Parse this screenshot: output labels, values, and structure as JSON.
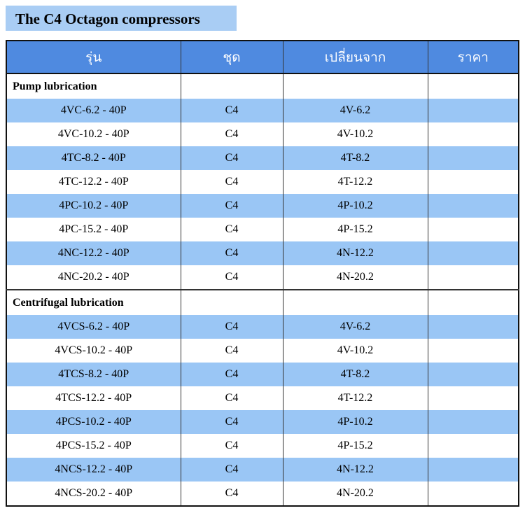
{
  "header": {
    "title": "The C4  Octagon compressors"
  },
  "table": {
    "columns": [
      "รุ่น",
      "ชุด",
      "เปลี่ยนจาก",
      "ราคา"
    ],
    "sections": [
      {
        "title": "Pump lubrication",
        "rows": [
          [
            "4VC-6.2 - 40P",
            "C4",
            "4V-6.2"
          ],
          [
            "4VC-10.2 - 40P",
            "C4",
            "4V-10.2"
          ],
          [
            "4TC-8.2 - 40P",
            "C4",
            "4T-8.2"
          ],
          [
            "4TC-12.2 - 40P",
            "C4",
            "4T-12.2"
          ],
          [
            "4PC-10.2 - 40P",
            "C4",
            "4P-10.2"
          ],
          [
            "4PC-15.2 - 40P",
            "C4",
            "4P-15.2"
          ],
          [
            "4NC-12.2 - 40P",
            "C4",
            "4N-12.2"
          ],
          [
            "4NC-20.2 - 40P",
            "C4",
            "4N-20.2"
          ]
        ]
      },
      {
        "title": "Centrifugal lubrication",
        "rows": [
          [
            "4VCS-6.2 - 40P",
            "C4",
            "4V-6.2"
          ],
          [
            "4VCS-10.2 - 40P",
            "C4",
            "4V-10.2"
          ],
          [
            "4TCS-8.2 - 40P",
            "C4",
            "4T-8.2"
          ],
          [
            "4TCS-12.2 - 40P",
            "C4",
            "4T-12.2"
          ],
          [
            "4PCS-10.2 - 40P",
            "C4",
            "4P-10.2"
          ],
          [
            "4PCS-15.2 - 40P",
            "C4",
            "4P-15.2"
          ],
          [
            "4NCS-12.2 - 40P",
            "C4",
            "4N-12.2"
          ],
          [
            "4NCS-20.2 - 40P",
            "C4",
            "4N-20.2"
          ]
        ]
      }
    ]
  }
}
